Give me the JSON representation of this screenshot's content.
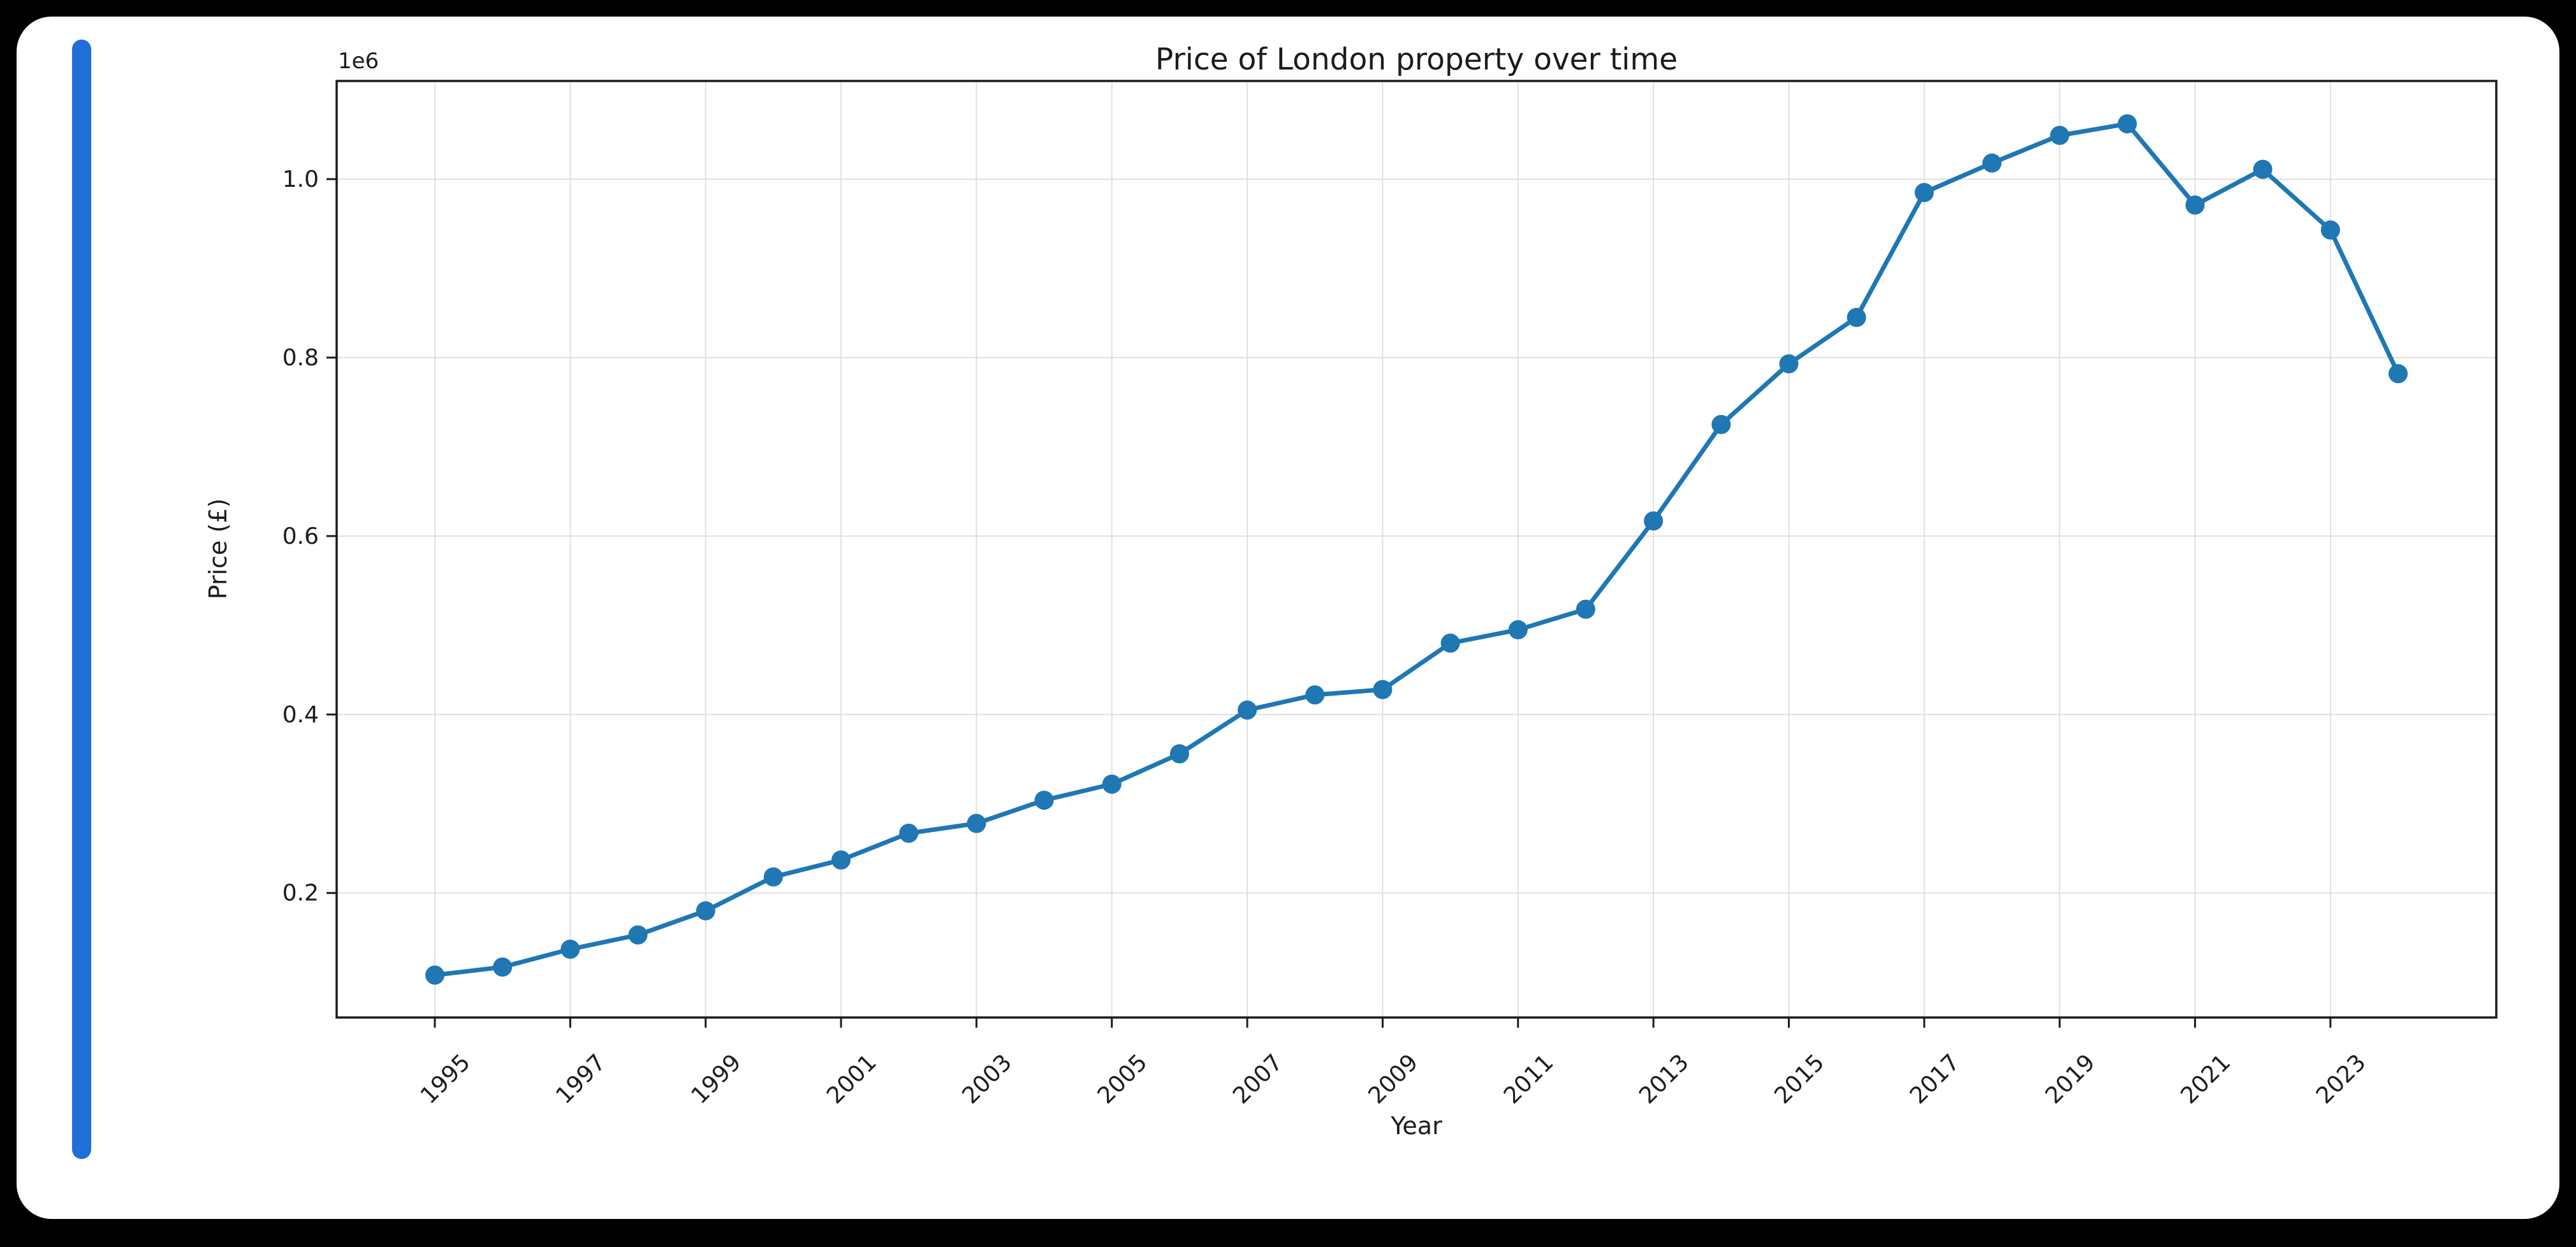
{
  "window": {
    "background_color": "#000000",
    "canvas_color": "#ffffff",
    "cell_indicator_color": "#1f6fd6"
  },
  "chart": {
    "title": "Price of London property over time",
    "xlabel": "Year",
    "ylabel": "Price (£)",
    "offset_text": "1e6"
  },
  "chart_data": {
    "type": "line",
    "title": "Price of London property over time",
    "xlabel": "Year",
    "ylabel": "Price (£)",
    "x": [
      1995,
      1996,
      1997,
      1998,
      1999,
      2000,
      2001,
      2002,
      2003,
      2004,
      2005,
      2006,
      2007,
      2008,
      2009,
      2010,
      2011,
      2012,
      2013,
      2014,
      2015,
      2016,
      2017,
      2018,
      2019,
      2020,
      2021,
      2022,
      2023,
      2024
    ],
    "y": [
      108000,
      117000,
      137000,
      153000,
      180000,
      218000,
      237000,
      267000,
      278000,
      304000,
      322000,
      356000,
      405000,
      422000,
      428000,
      480000,
      495000,
      518000,
      617000,
      725000,
      793000,
      845000,
      985000,
      1018000,
      1049000,
      1062000,
      971000,
      1011000,
      943000,
      782000
    ],
    "series_color": "#1f77b4",
    "marker": "circle",
    "grid": true,
    "legend": false,
    "xlim": [
      1993.55,
      2025.45
    ],
    "ylim": [
      60500,
      1110000
    ],
    "x_ticks": [
      1995,
      1997,
      1999,
      2001,
      2003,
      2005,
      2007,
      2009,
      2011,
      2013,
      2015,
      2017,
      2019,
      2021,
      2023
    ],
    "x_tick_labels": [
      "1995",
      "1997",
      "1999",
      "2001",
      "2003",
      "2005",
      "2007",
      "2009",
      "2011",
      "2013",
      "2015",
      "2017",
      "2019",
      "2021",
      "2023"
    ],
    "x_tick_rotation": 45,
    "y_ticks": [
      200000,
      400000,
      600000,
      800000,
      1000000
    ],
    "y_tick_labels": [
      "0.2",
      "0.4",
      "0.6",
      "0.8",
      "1.0"
    ],
    "y_offset_text": "1e6"
  }
}
